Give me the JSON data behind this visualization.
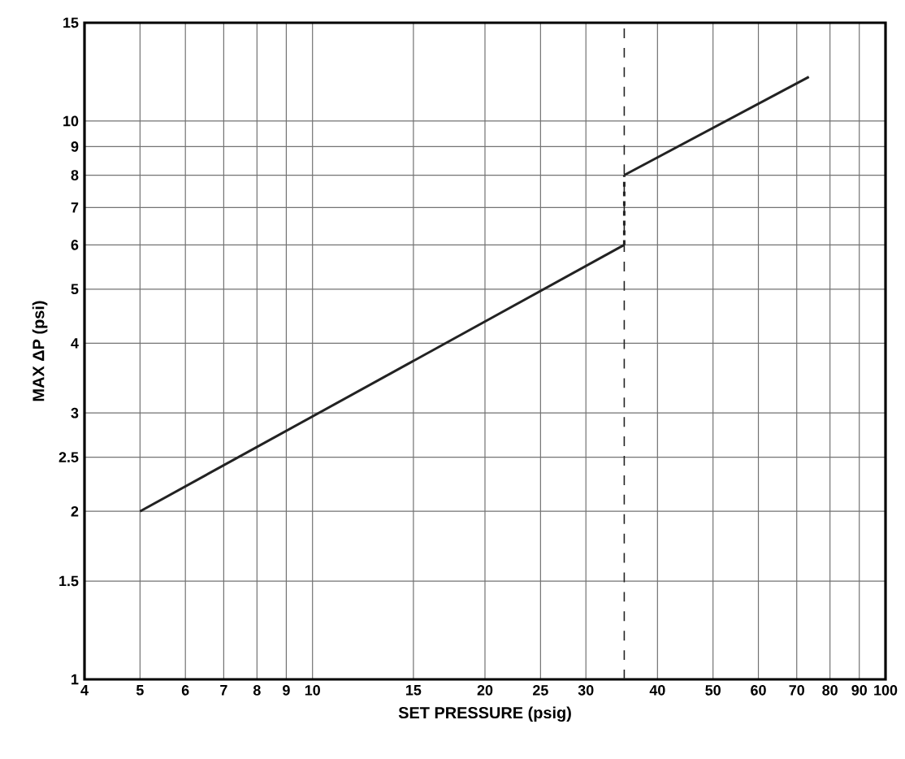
{
  "chart_data": {
    "type": "line",
    "xlabel": "SET PRESSURE (psig)",
    "ylabel": "MAX ΔP (psi)",
    "log": "xy",
    "grid": true,
    "marker": "none",
    "xlim": [
      4,
      100
    ],
    "ylim": [
      1,
      15
    ],
    "xticks": [
      4,
      5,
      6,
      7,
      8,
      9,
      10,
      15,
      20,
      25,
      30,
      40,
      50,
      60,
      70,
      80,
      90,
      100
    ],
    "yticks": [
      1,
      1.5,
      2,
      2.5,
      3,
      4,
      5,
      6,
      7,
      8,
      9,
      10,
      15
    ],
    "series": [
      {
        "color": "#222222",
        "x": [
          5,
          35
        ],
        "values": [
          2,
          6
        ],
        "line_style": "solid"
      },
      {
        "color": "#222222",
        "x": [
          35,
          35
        ],
        "values": [
          6,
          8
        ],
        "line_style": "dashed"
      },
      {
        "color": "#222222",
        "x": [
          35,
          73.5
        ],
        "values": [
          8,
          12
        ],
        "line_style": "solid"
      }
    ],
    "ref_lines": [
      {
        "axis": "x",
        "value": 35,
        "color": "#222222",
        "line_style": "dashed"
      }
    ]
  }
}
